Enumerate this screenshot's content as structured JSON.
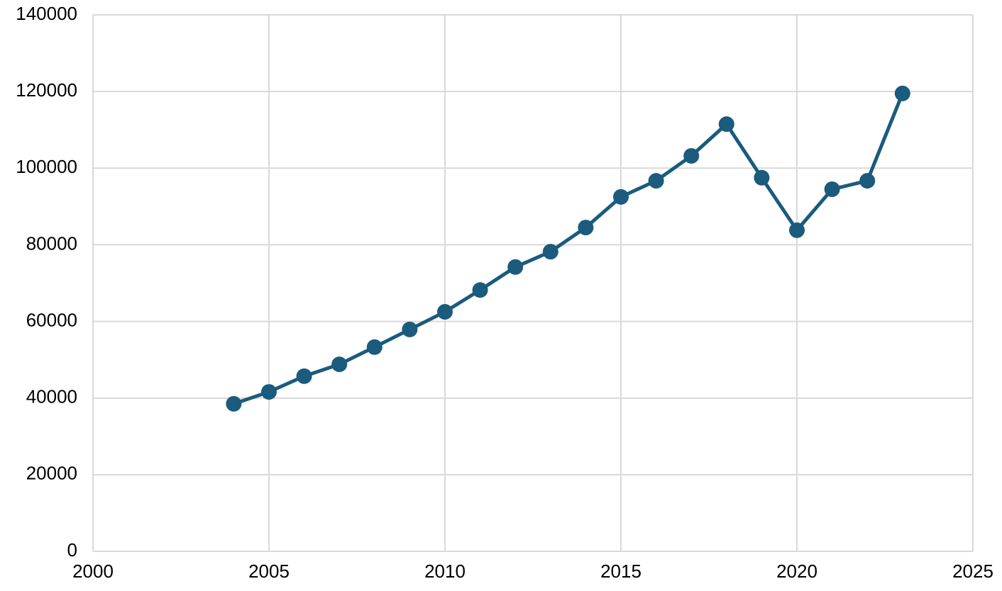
{
  "chart_data": {
    "type": "line",
    "x": [
      2004,
      2005,
      2006,
      2007,
      2008,
      2009,
      2010,
      2011,
      2012,
      2013,
      2014,
      2015,
      2016,
      2017,
      2018,
      2019,
      2020,
      2021,
      2022,
      2023
    ],
    "series": [
      {
        "name": "",
        "color": "#1a5b7e",
        "values": [
          38500,
          41600,
          45700,
          48800,
          53300,
          57900,
          62500,
          68200,
          74200,
          78200,
          84500,
          92500,
          96700,
          103200,
          111500,
          97500,
          83800,
          94500,
          96700,
          119500
        ]
      }
    ],
    "xlim": [
      2000,
      2025
    ],
    "xticks": [
      2000,
      2005,
      2010,
      2015,
      2020,
      2025
    ],
    "ylim": [
      0,
      140000
    ],
    "yticks": [
      0,
      20000,
      40000,
      60000,
      80000,
      100000,
      120000,
      140000
    ],
    "grid": true
  }
}
